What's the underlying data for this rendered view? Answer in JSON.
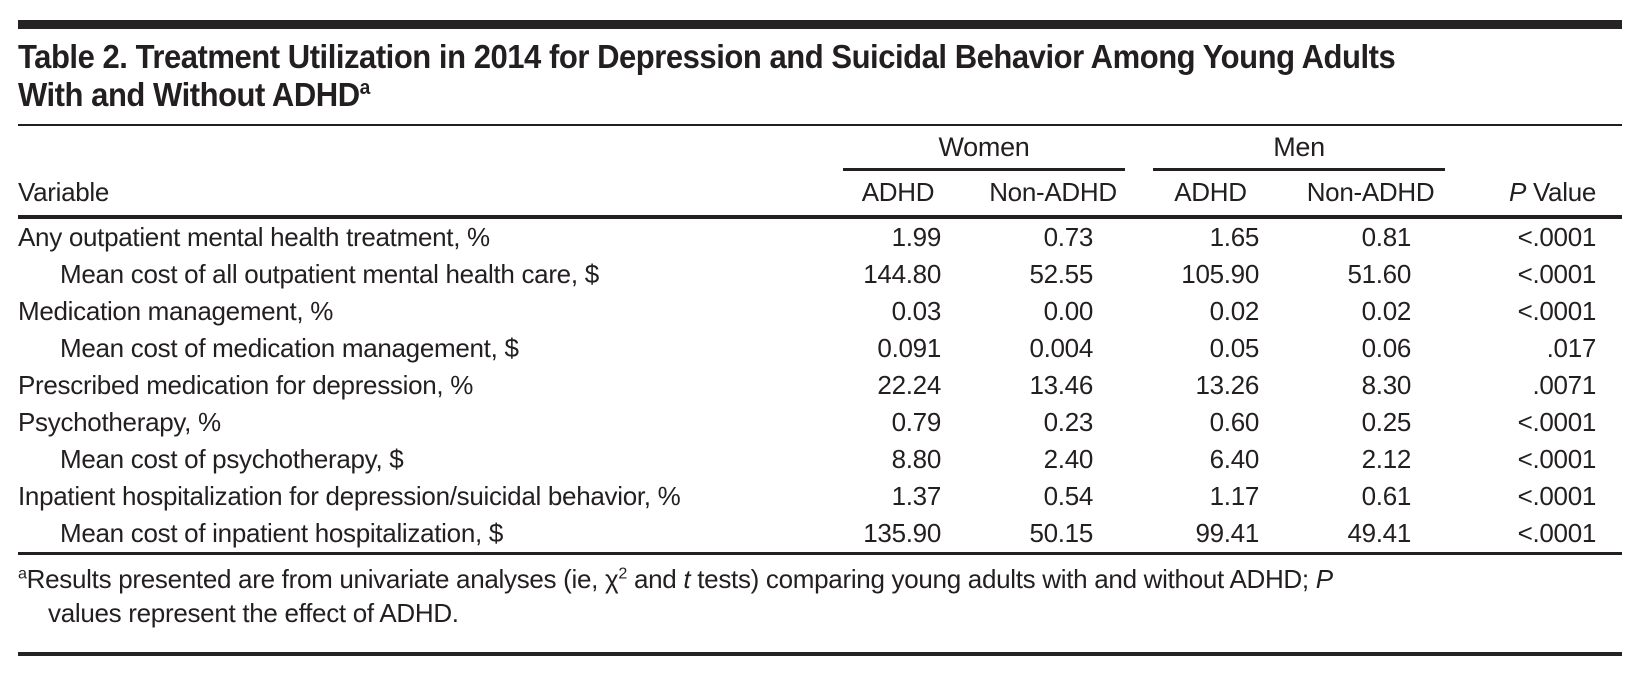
{
  "title": {
    "line1": "Table 2. Treatment Utilization in 2014 for Depression and Suicidal Behavior Among Young Adults",
    "line2": "With and Without ADHD",
    "footnote_marker": "a"
  },
  "table": {
    "variable_header": "Variable",
    "group_headers": [
      "Women",
      "Men"
    ],
    "sub_headers": [
      "ADHD",
      "Non-ADHD",
      "ADHD",
      "Non-ADHD"
    ],
    "p_value_header": {
      "italic": "P",
      "rest": " Value"
    },
    "rows": [
      {
        "label": "Any outpatient mental health treatment, %",
        "women_adhd": "1.99",
        "women_non_adhd": "0.73",
        "men_adhd": "1.65",
        "men_non_adhd": "0.81",
        "p_value": "<.0001"
      },
      {
        "label": "Mean cost of all outpatient mental health care, $",
        "women_adhd": "144.80",
        "women_non_adhd": "52.55",
        "men_adhd": "105.90",
        "men_non_adhd": "51.60",
        "p_value": "<.0001"
      },
      {
        "label": "Medication management, %",
        "women_adhd": "0.03",
        "women_non_adhd": "0.00",
        "men_adhd": "0.02",
        "men_non_adhd": "0.02",
        "p_value": "<.0001"
      },
      {
        "label": "Mean cost of medication management, $",
        "women_adhd": "0.091",
        "women_non_adhd": "0.004",
        "men_adhd": "0.05",
        "men_non_adhd": "0.06",
        "p_value": ".017"
      },
      {
        "label": "Prescribed medication for depression, %",
        "women_adhd": "22.24",
        "women_non_adhd": "13.46",
        "men_adhd": "13.26",
        "men_non_adhd": "8.30",
        "p_value": ".0071"
      },
      {
        "label": "Psychotherapy, %",
        "women_adhd": "0.79",
        "women_non_adhd": "0.23",
        "men_adhd": "0.60",
        "men_non_adhd": "0.25",
        "p_value": "<.0001"
      },
      {
        "label": "Mean cost of psychotherapy, $",
        "women_adhd": "8.80",
        "women_non_adhd": "2.40",
        "men_adhd": "6.40",
        "men_non_adhd": "2.12",
        "p_value": "<.0001"
      },
      {
        "label": "Inpatient hospitalization for depression/suicidal behavior, %",
        "women_adhd": "1.37",
        "women_non_adhd": "0.54",
        "men_adhd": "1.17",
        "men_non_adhd": "0.61",
        "p_value": "<.0001"
      },
      {
        "label": "Mean cost of inpatient hospitalization, $",
        "women_adhd": "135.90",
        "women_non_adhd": "50.15",
        "men_adhd": "99.41",
        "men_non_adhd": "49.41",
        "p_value": "<.0001"
      }
    ]
  },
  "footnote": {
    "marker": "a",
    "part1": "Results presented are from univariate analyses (ie, χ",
    "chi_sup": "2",
    "part2": " and ",
    "italic_t": "t",
    "part3": " tests) comparing young adults with and without ADHD; ",
    "italic_p": "P",
    "line2": "values represent the effect of ADHD."
  },
  "colors": {
    "text": "#231f20",
    "rule": "#262324",
    "background": "#ffffff"
  }
}
